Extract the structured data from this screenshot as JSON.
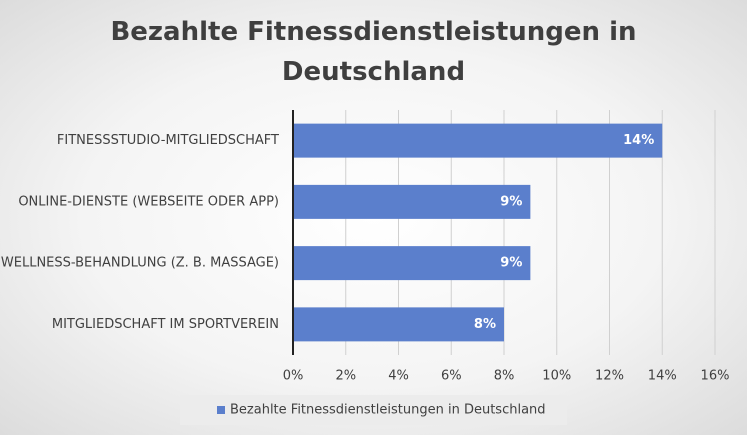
{
  "chart_data": {
    "type": "hbar",
    "title": "Bezahlte Fitnessdienstleistungen in Deutschland",
    "categories": [
      "FITNESSSTUDIO-MITGLIEDSCHAFT",
      "ONLINE-DIENSTE (WEBSEITE ODER APP)",
      "WELLNESS-BEHANDLUNG (Z. B. MASSAGE)",
      "MITGLIEDSCHAFT IM SPORTVEREIN"
    ],
    "series": [
      {
        "name": "Bezahlte Fitnessdienstleistungen in Deutschland",
        "color": "#5b7fcc",
        "values": [
          14,
          9,
          9,
          8
        ],
        "value_labels": [
          "14%",
          "9%",
          "9%",
          "8%"
        ]
      }
    ],
    "xlim": [
      0,
      16
    ],
    "xticks": [
      {
        "value": 0,
        "label": "0%"
      },
      {
        "value": 2,
        "label": "2%"
      },
      {
        "value": 4,
        "label": "4%"
      },
      {
        "value": 6,
        "label": "6%"
      },
      {
        "value": 8,
        "label": "8%"
      },
      {
        "value": 10,
        "label": "10%"
      },
      {
        "value": 12,
        "label": "12%"
      },
      {
        "value": 14,
        "label": "14%"
      },
      {
        "value": 16,
        "label": "16%"
      }
    ],
    "grid": true,
    "legend": "bottom"
  }
}
